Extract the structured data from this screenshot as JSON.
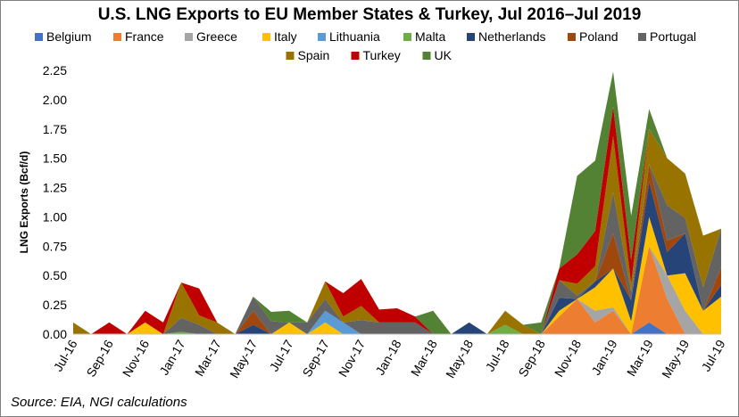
{
  "chart_data": {
    "type": "area",
    "stacked": true,
    "title": "U.S. LNG Exports to EU Member States & Turkey, Jul 2016–Jul 2019",
    "ylabel": "LNG Exports (Bcf/d)",
    "xlabel": "",
    "ylim": [
      0,
      2.25
    ],
    "y_ticks": [
      "0.00",
      "0.25",
      "0.50",
      "0.75",
      "1.00",
      "1.25",
      "1.50",
      "1.75",
      "2.00",
      "2.25"
    ],
    "grid": false,
    "legend_position": "top",
    "x_tick_labels": [
      "Jul-16",
      "Sep-16",
      "Nov-16",
      "Jan-17",
      "Mar-17",
      "May-17",
      "Jul-17",
      "Sep-17",
      "Nov-17",
      "Jan-18",
      "Mar-18",
      "May-18",
      "Jul-18",
      "Sep-18",
      "Nov-18",
      "Jan-19",
      "Mar-19",
      "May-19",
      "Jul-19"
    ],
    "categories": [
      "Jul-16",
      "Aug-16",
      "Sep-16",
      "Oct-16",
      "Nov-16",
      "Dec-16",
      "Jan-17",
      "Feb-17",
      "Mar-17",
      "Apr-17",
      "May-17",
      "Jun-17",
      "Jul-17",
      "Aug-17",
      "Sep-17",
      "Oct-17",
      "Nov-17",
      "Dec-17",
      "Jan-18",
      "Feb-18",
      "Mar-18",
      "Apr-18",
      "May-18",
      "Jun-18",
      "Jul-18",
      "Aug-18",
      "Sep-18",
      "Oct-18",
      "Nov-18",
      "Dec-18",
      "Jan-19",
      "Feb-19",
      "Mar-19",
      "Apr-19",
      "May-19",
      "Jun-19",
      "Jul-19"
    ],
    "series": [
      {
        "name": "Belgium",
        "color": "#4472C4",
        "values": [
          0,
          0,
          0,
          0,
          0,
          0,
          0,
          0,
          0,
          0,
          0,
          0,
          0,
          0,
          0,
          0,
          0,
          0,
          0,
          0,
          0,
          0,
          0,
          0,
          0,
          0,
          0,
          0,
          0,
          0,
          0,
          0,
          0.1,
          0,
          0,
          0,
          0
        ]
      },
      {
        "name": "France",
        "color": "#ED7D31",
        "values": [
          0,
          0,
          0,
          0,
          0,
          0,
          0,
          0,
          0,
          0,
          0,
          0,
          0,
          0,
          0,
          0,
          0,
          0,
          0,
          0,
          0,
          0,
          0,
          0,
          0,
          0,
          0,
          0.15,
          0.3,
          0.1,
          0.2,
          0,
          0.65,
          0.3,
          0,
          0,
          0
        ]
      },
      {
        "name": "Greece",
        "color": "#A5A5A5",
        "values": [
          0,
          0,
          0,
          0,
          0,
          0,
          0,
          0,
          0,
          0,
          0,
          0,
          0,
          0,
          0,
          0,
          0,
          0,
          0,
          0,
          0,
          0,
          0,
          0,
          0,
          0,
          0,
          0,
          0,
          0.1,
          0.03,
          0,
          0,
          0.2,
          0.2,
          0,
          0
        ]
      },
      {
        "name": "Italy",
        "color": "#FFC000",
        "values": [
          0,
          0,
          0,
          0,
          0.1,
          0,
          0,
          0,
          0,
          0,
          0,
          0,
          0.1,
          0,
          0.1,
          0,
          0,
          0,
          0,
          0,
          0,
          0,
          0,
          0,
          0,
          0,
          0,
          0.05,
          0,
          0.2,
          0.33,
          0.11,
          0.25,
          0,
          0.32,
          0.2,
          0.32
        ]
      },
      {
        "name": "Lithuania",
        "color": "#5B9BD5",
        "values": [
          0,
          0,
          0,
          0,
          0,
          0,
          0,
          0,
          0,
          0,
          0,
          0,
          0,
          0,
          0.1,
          0.1,
          0,
          0,
          0,
          0,
          0,
          0,
          0,
          0,
          0,
          0,
          0,
          0,
          0,
          0,
          0,
          0,
          0,
          0,
          0,
          0,
          0
        ]
      },
      {
        "name": "Malta",
        "color": "#70AD47",
        "values": [
          0,
          0,
          0,
          0,
          0,
          0,
          0.02,
          0,
          0,
          0,
          0,
          0,
          0,
          0,
          0,
          0,
          0,
          0,
          0,
          0,
          0,
          0,
          0,
          0,
          0.08,
          0,
          0,
          0,
          0,
          0,
          0,
          0,
          0,
          0,
          0,
          0,
          0
        ]
      },
      {
        "name": "Netherlands",
        "color": "#264478",
        "values": [
          0,
          0,
          0,
          0,
          0,
          0,
          0,
          0,
          0,
          0,
          0.08,
          0,
          0,
          0,
          0,
          0,
          0,
          0,
          0,
          0,
          0,
          0,
          0.1,
          0,
          0,
          0,
          0,
          0.11,
          0,
          0.05,
          0,
          0.18,
          0.3,
          0.2,
          0.34,
          0,
          0.1
        ]
      },
      {
        "name": "Poland",
        "color": "#9E480E",
        "values": [
          0,
          0,
          0,
          0,
          0,
          0,
          0,
          0,
          0,
          0,
          0.12,
          0,
          0,
          0,
          0,
          0,
          0,
          0,
          0,
          0,
          0,
          0,
          0,
          0,
          0,
          0,
          0,
          0,
          0,
          0,
          0.3,
          0,
          0.15,
          0.1,
          0,
          0,
          0.15
        ]
      },
      {
        "name": "Portugal",
        "color": "#636363",
        "values": [
          0,
          0,
          0,
          0,
          0,
          0,
          0.12,
          0.08,
          0,
          0,
          0.12,
          0.11,
          0,
          0.1,
          0.1,
          0,
          0.12,
          0.1,
          0.1,
          0.1,
          0,
          0,
          0,
          0,
          0,
          0,
          0,
          0.15,
          0.03,
          0,
          0.35,
          0.07,
          0,
          0.3,
          0.13,
          0.2,
          0.33
        ]
      },
      {
        "name": "Spain",
        "color": "#997300",
        "values": [
          0.1,
          0,
          0,
          0,
          0,
          0,
          0.3,
          0.08,
          0.1,
          0,
          0,
          0,
          0,
          0,
          0.15,
          0.05,
          0.12,
          0,
          0,
          0,
          0,
          0,
          0,
          0,
          0.12,
          0.08,
          0,
          0,
          0.1,
          0.13,
          0.48,
          0.07,
          0.3,
          0.4,
          0.38,
          0.44,
          0
        ]
      },
      {
        "name": "Turkey",
        "color": "#C00000",
        "values": [
          0,
          0,
          0.1,
          0,
          0.1,
          0.1,
          0,
          0.23,
          0,
          0,
          0,
          0,
          0,
          0,
          0,
          0.2,
          0.23,
          0.11,
          0.12,
          0.05,
          0,
          0,
          0,
          0,
          0,
          0,
          0,
          0.1,
          0.25,
          0.3,
          0.25,
          0.2,
          0,
          0,
          0,
          0,
          0
        ]
      },
      {
        "name": "UK",
        "color": "#548235",
        "values": [
          0,
          0,
          0,
          0,
          0,
          0,
          0,
          0,
          0,
          0,
          0,
          0.08,
          0.1,
          0,
          0,
          0,
          0,
          0,
          0,
          0,
          0.2,
          0,
          0,
          0,
          0,
          0,
          0.1,
          0,
          0.67,
          0.6,
          0.3,
          0.38,
          0.17,
          0,
          0,
          0,
          0
        ]
      }
    ]
  },
  "source_text": "Source: EIA, NGI calculations"
}
